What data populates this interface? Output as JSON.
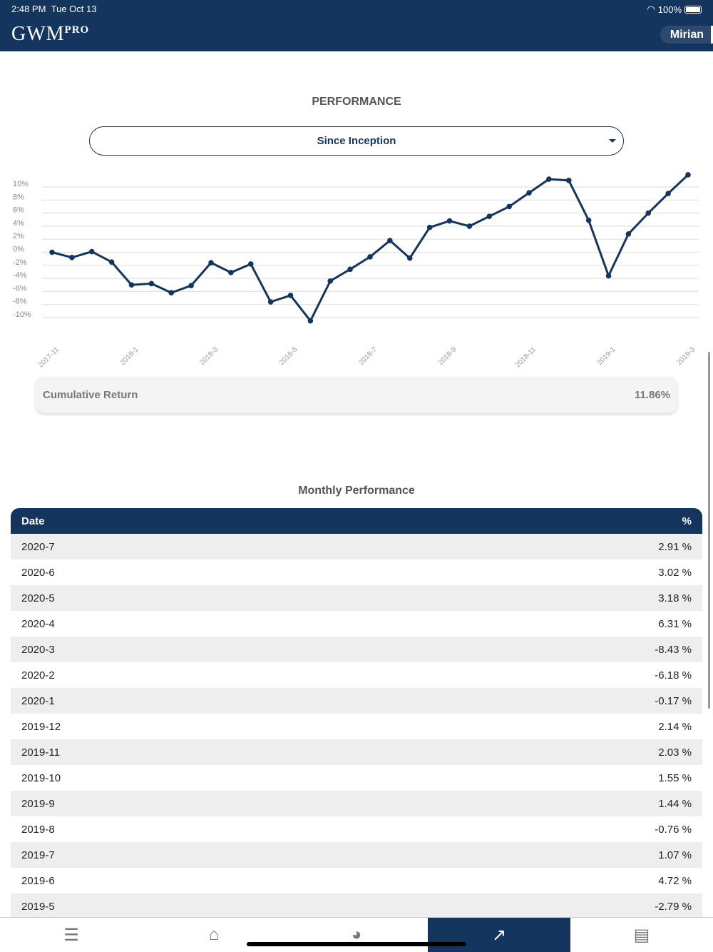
{
  "status_bar": {
    "time": "2:48 PM",
    "date": "Tue Oct 13",
    "battery": "100%"
  },
  "header": {
    "logo": "GWM",
    "logo_sup": "PRO",
    "user": "Mirian"
  },
  "page_title": "PERFORMANCE",
  "period_select": {
    "value": "Since Inception"
  },
  "chart_data": {
    "type": "line",
    "x": [
      "2017-11",
      "",
      "",
      "",
      "2018-1",
      "",
      "",
      "",
      "2018-3",
      "",
      "",
      "",
      "2018-5",
      "",
      "",
      "",
      "2018-7",
      "",
      "",
      "",
      "2018-9",
      "",
      "",
      "",
      "2018-11",
      "",
      "",
      "",
      "2019-1",
      "",
      "",
      "",
      "2019-3"
    ],
    "tick_labels": [
      "2017-11",
      "2018-1",
      "2018-3",
      "2018-5",
      "2018-7",
      "2018-9",
      "2018-11",
      "2019-1",
      "2019-3"
    ],
    "values": [
      0,
      -0.8,
      0.1,
      -1.5,
      -5.0,
      -4.8,
      -6.2,
      -5.1,
      -1.6,
      -3.1,
      -1.8,
      -7.6,
      -6.6,
      -10.5,
      -4.4,
      -2.6,
      -0.7,
      1.8,
      -0.9,
      3.8,
      4.8,
      4.0,
      5.5,
      7.0,
      9.1,
      11.2,
      11.0,
      4.9,
      -3.6,
      2.8,
      6.0,
      9.0,
      11.86
    ],
    "y_ticks": [
      "10%",
      "8%",
      "6%",
      "4%",
      "2%",
      "0%",
      "-2%",
      "-4%",
      "-6%",
      "-8%",
      "-10%"
    ],
    "ylim": [
      -10,
      10
    ],
    "grid": true,
    "color": "#14355e"
  },
  "cumulative": {
    "label": "Cumulative Return",
    "value": "11.86%"
  },
  "monthly": {
    "title": "Monthly Performance",
    "col_date": "Date",
    "col_pct": "%",
    "rows": [
      {
        "date": "2020-7",
        "pct": "2.91 %"
      },
      {
        "date": "2020-6",
        "pct": "3.02 %"
      },
      {
        "date": "2020-5",
        "pct": "3.18 %"
      },
      {
        "date": "2020-4",
        "pct": "6.31 %"
      },
      {
        "date": "2020-3",
        "pct": "-8.43 %"
      },
      {
        "date": "2020-2",
        "pct": "-6.18 %"
      },
      {
        "date": "2020-1",
        "pct": "-0.17 %"
      },
      {
        "date": "2019-12",
        "pct": "2.14 %"
      },
      {
        "date": "2019-11",
        "pct": "2.03 %"
      },
      {
        "date": "2019-10",
        "pct": "1.55 %"
      },
      {
        "date": "2019-9",
        "pct": "1.44 %"
      },
      {
        "date": "2019-8",
        "pct": "-0.76 %"
      },
      {
        "date": "2019-7",
        "pct": "1.07 %"
      },
      {
        "date": "2019-6",
        "pct": "4.72 %"
      },
      {
        "date": "2019-5",
        "pct": "-2.79 %"
      }
    ]
  },
  "nav": [
    {
      "icon": "menu-icon",
      "glyph": "☰"
    },
    {
      "icon": "home-icon",
      "glyph": "⌂"
    },
    {
      "icon": "pie-chart-icon",
      "glyph": "◕"
    },
    {
      "icon": "trending-up-icon",
      "glyph": "↗",
      "active": true
    },
    {
      "icon": "document-icon",
      "glyph": "▤"
    }
  ]
}
